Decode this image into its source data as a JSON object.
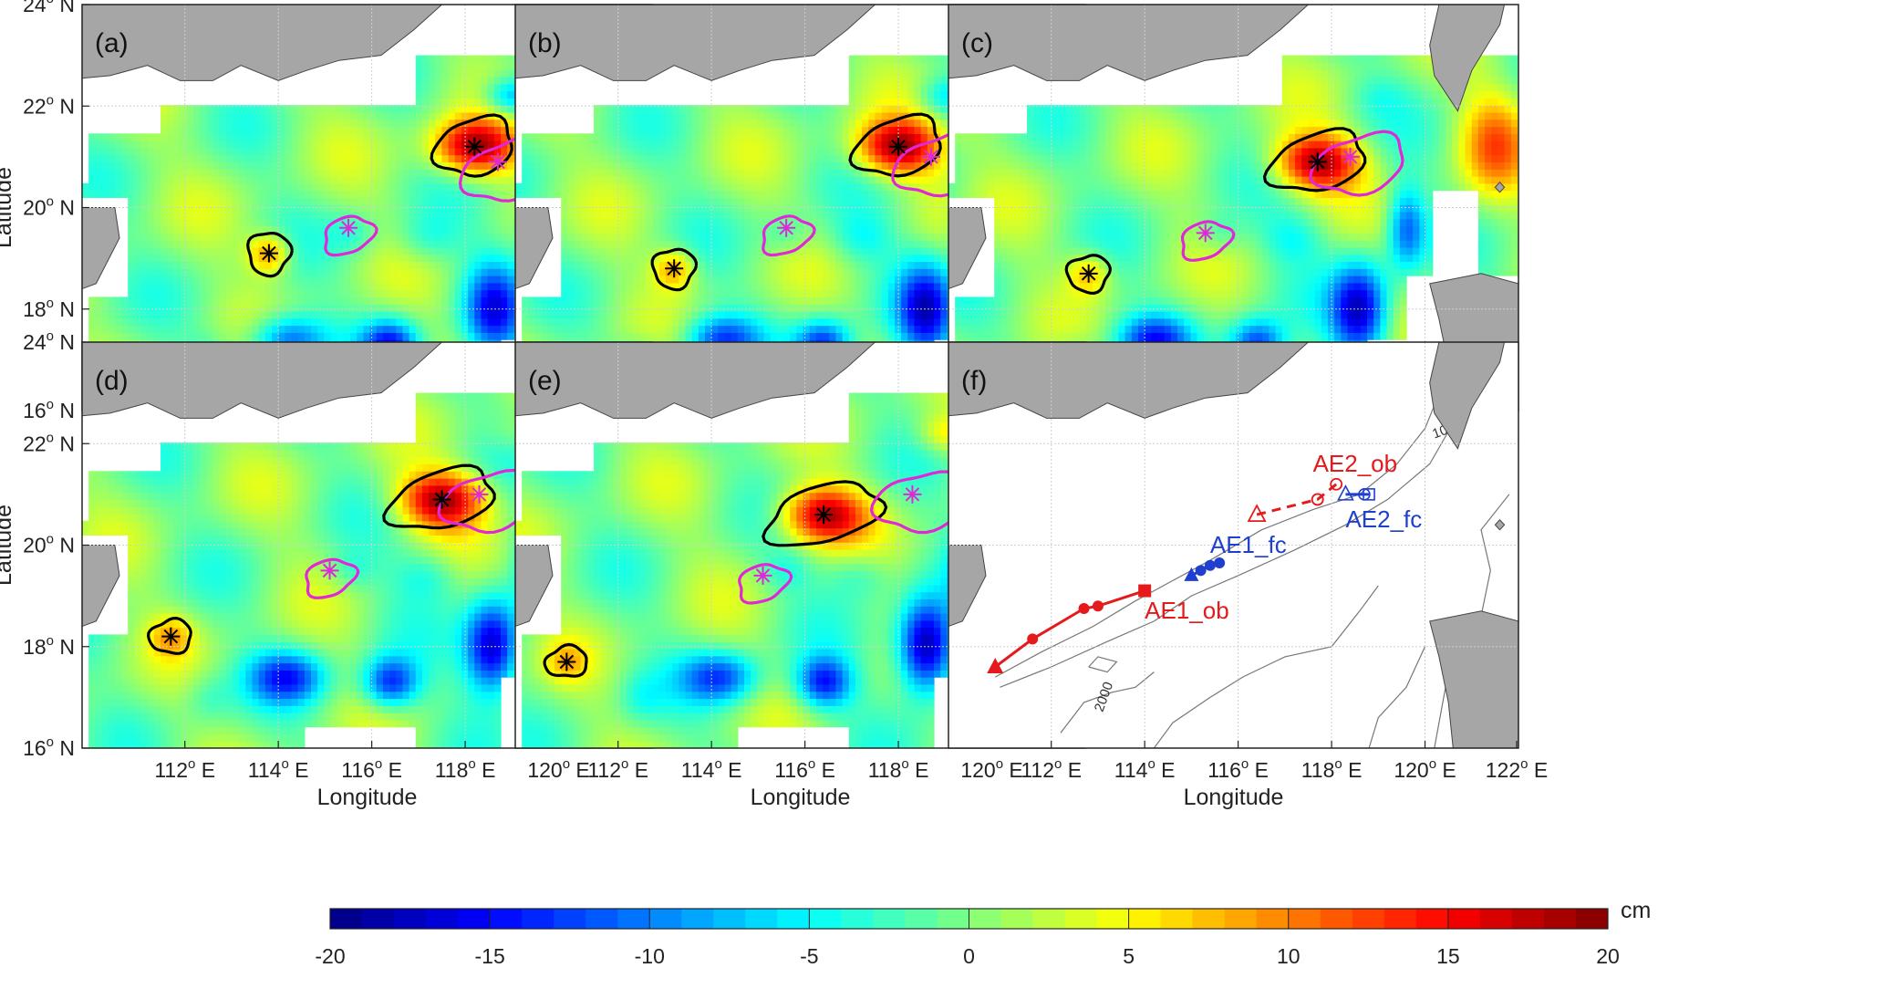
{
  "panels": [
    {
      "label": "(a)",
      "black_star": [
        113.8,
        19.1
      ],
      "magenta_star": [
        115.5,
        19.6
      ],
      "black_star2": [
        118.2,
        21.2
      ],
      "magenta_star2": [
        118.7,
        20.9
      ]
    },
    {
      "label": "(b)",
      "black_star": [
        113.2,
        18.8
      ],
      "magenta_star": [
        115.6,
        19.6
      ],
      "black_star2": [
        118.0,
        21.2
      ],
      "magenta_star2": [
        118.7,
        21.0
      ]
    },
    {
      "label": "(c)",
      "black_star": [
        112.8,
        18.7
      ],
      "magenta_star": [
        115.3,
        19.5
      ],
      "black_star2": [
        117.7,
        20.9
      ],
      "magenta_star2": [
        118.4,
        21.0
      ]
    },
    {
      "label": "(d)",
      "black_star": [
        111.7,
        18.2
      ],
      "magenta_star": [
        115.1,
        19.5
      ],
      "black_star2": [
        117.5,
        20.9
      ],
      "magenta_star2": [
        118.3,
        21.0
      ]
    },
    {
      "label": "(e)",
      "black_star": [
        110.9,
        17.7
      ],
      "magenta_star": [
        115.1,
        19.4
      ],
      "black_star2": [
        116.4,
        20.6
      ],
      "magenta_star2": [
        118.3,
        21.0
      ]
    },
    {
      "label": "(f)"
    }
  ],
  "axes": {
    "lon_range": [
      110,
      122
    ],
    "lat_range": [
      16,
      24
    ],
    "lat_ticks": [
      16,
      18,
      20,
      22,
      24
    ],
    "lon_ticks_upper": [],
    "lon_ticks_lower_left": [
      112,
      114,
      116,
      118,
      120
    ],
    "lon_ticks_lower_right": [
      112,
      114,
      116,
      118,
      120,
      122
    ],
    "xlabel": "Longitude",
    "ylabel": "Latitude",
    "lat_suffix": "N",
    "lon_suffix": "E",
    "deg_symbol": "o"
  },
  "tracks": {
    "AE1_ob": {
      "label": "AE1_ob",
      "color": "#e41a1c",
      "points": [
        [
          110.8,
          17.6
        ],
        [
          111.6,
          18.15
        ],
        [
          112.7,
          18.75
        ],
        [
          113.0,
          18.8
        ],
        [
          114.0,
          19.1
        ]
      ]
    },
    "AE1_fc": {
      "label": "AE1_fc",
      "color": "#1f3fd1",
      "points": [
        [
          115.0,
          19.4
        ],
        [
          115.2,
          19.5
        ],
        [
          115.4,
          19.6
        ],
        [
          115.6,
          19.65
        ]
      ]
    },
    "AE2_ob": {
      "label": "AE2_ob",
      "color": "#e41a1c",
      "points": [
        [
          116.4,
          20.6
        ],
        [
          117.7,
          20.9
        ],
        [
          118.1,
          21.2
        ]
      ]
    },
    "AE2_fc": {
      "label": "AE2_fc",
      "color": "#1f3fd1",
      "points": [
        [
          118.3,
          21.0
        ],
        [
          118.7,
          21.0
        ],
        [
          118.8,
          21.0
        ]
      ]
    }
  },
  "isobaths": [
    {
      "label": "1000"
    },
    {
      "label": "2000"
    }
  ],
  "colorbar": {
    "unit": "cm",
    "min": -20,
    "max": 20,
    "ticks": [
      -20,
      -15,
      -10,
      -5,
      0,
      5,
      10,
      15,
      20
    ]
  },
  "colors": {
    "land": "#a6a6a6",
    "black_contour": "#000000",
    "magenta_contour": "#e028d8"
  }
}
